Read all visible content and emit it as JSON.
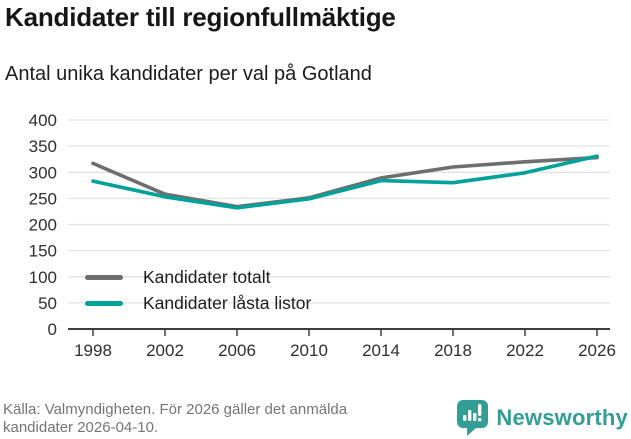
{
  "header": {
    "title": "Kandidater till regionfullmäktige",
    "subtitle": "Antal unika kandidater per val på Gotland"
  },
  "chart_data": {
    "type": "line",
    "title": "Kandidater till regionfullmäktige",
    "subtitle": "Antal unika kandidater per val på Gotland",
    "x": [
      1998,
      2002,
      2006,
      2010,
      2014,
      2018,
      2022,
      2026
    ],
    "xticks": [
      "1998",
      "2002",
      "2006",
      "2010",
      "2014",
      "2018",
      "2022",
      "2026"
    ],
    "yticks": [
      "0",
      "50",
      "100",
      "150",
      "200",
      "250",
      "300",
      "350",
      "400"
    ],
    "ylim": [
      0,
      400
    ],
    "grid": true,
    "legend_position": "inside bottom-left",
    "series": [
      {
        "name": "Kandidater totalt",
        "color": "#6e6e6e",
        "values": [
          317,
          258,
          234,
          251,
          289,
          310,
          320,
          328
        ]
      },
      {
        "name": "Kandidater låsta listor",
        "color": "#00a29a",
        "values": [
          283,
          253,
          232,
          249,
          284,
          280,
          299,
          331
        ]
      }
    ]
  },
  "footer": {
    "source_line1": "Källa: Valmyndigheten. För 2026 gäller det anmälda",
    "source_line2": "kandidater 2026-04-10.",
    "brand": "Newsworthy",
    "brand_color": "#339e96"
  }
}
